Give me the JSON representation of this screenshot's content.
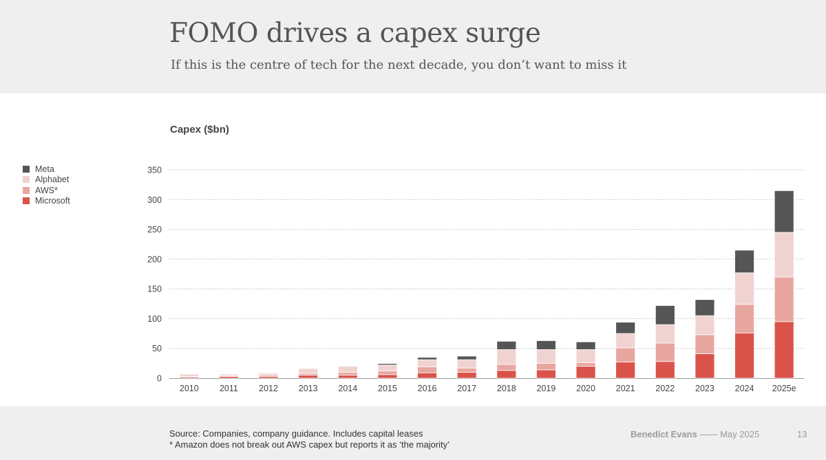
{
  "header": {
    "title": "FOMO drives a capex surge",
    "subtitle": "If this is the centre of tech for the next decade, you don’t want to miss it"
  },
  "footer": {
    "source_line1": "Source: Companies, company guidance. Includes capital leases",
    "source_line2": "* Amazon does not break out AWS capex but reports it as ‘the majority’",
    "author": "Benedict Evans",
    "separator": "——",
    "date": "May 2025",
    "page_number": "13"
  },
  "colors": {
    "Microsoft": "#d9534a",
    "AWS*": "#e8a6a0",
    "Alphabet": "#f0d3d0",
    "Meta": "#555555"
  },
  "chart_data": {
    "type": "bar",
    "stacked": true,
    "title": "",
    "ylabel": "Capex ($bn)",
    "xlabel": "",
    "ylim": [
      0,
      350
    ],
    "yticks": [
      0,
      50,
      100,
      150,
      200,
      250,
      300,
      350
    ],
    "grid": "horizontal dotted",
    "legend_position": "left",
    "legend_order": [
      "Meta",
      "Alphabet",
      "AWS*",
      "Microsoft"
    ],
    "categories": [
      "2010",
      "2011",
      "2012",
      "2013",
      "2014",
      "2015",
      "2016",
      "2017",
      "2018",
      "2019",
      "2020",
      "2021",
      "2022",
      "2023",
      "2024",
      "2025e"
    ],
    "series": [
      {
        "name": "Microsoft",
        "values": [
          2,
          3,
          3,
          5,
          5,
          6,
          9,
          10,
          13,
          14,
          20,
          27,
          28,
          41,
          76,
          95
        ]
      },
      {
        "name": "AWS*",
        "values": [
          1,
          1,
          2,
          3,
          5,
          6,
          10,
          7,
          10,
          11,
          6,
          24,
          31,
          32,
          48,
          75
        ]
      },
      {
        "name": "Alphabet",
        "values": [
          4,
          3,
          3,
          8,
          10,
          10,
          12,
          14,
          25,
          23,
          22,
          24,
          31,
          32,
          53,
          75
        ]
      },
      {
        "name": "Meta",
        "values": [
          0.5,
          0.5,
          1,
          1,
          1,
          2.5,
          4,
          6,
          14,
          15,
          13,
          19,
          32,
          27,
          38,
          70
        ]
      }
    ]
  }
}
